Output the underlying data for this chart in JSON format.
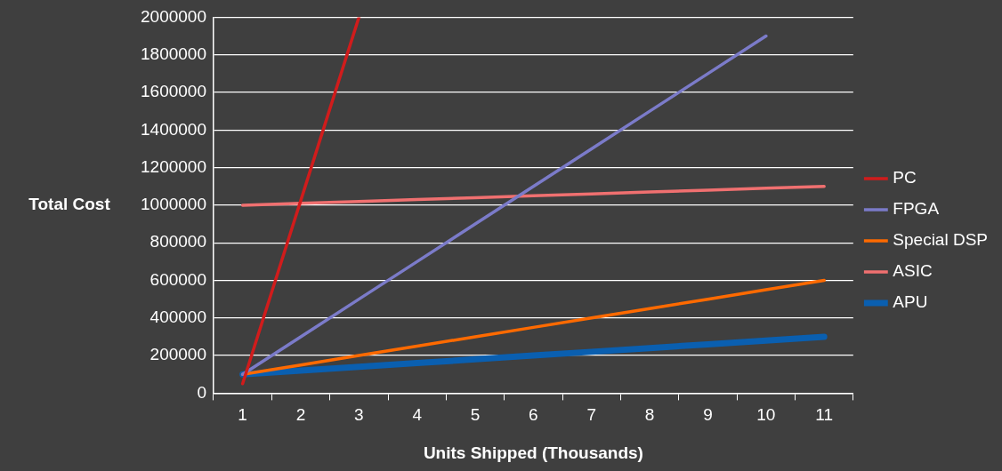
{
  "chart_data": {
    "type": "line",
    "xlabel": "Units Shipped (Thousands)",
    "ylabel": "Total Cost",
    "categories": [
      "1",
      "2",
      "3",
      "4",
      "5",
      "6",
      "7",
      "8",
      "9",
      "10",
      "11"
    ],
    "series": [
      {
        "name": "PC",
        "color": "#d01c1c",
        "values": [
          50000,
          1025000,
          2000000,
          null,
          null,
          null,
          null,
          null,
          null,
          null,
          null
        ]
      },
      {
        "name": "FPGA",
        "color": "#7b7bc9",
        "values": [
          100000,
          300000,
          500000,
          700000,
          900000,
          1100000,
          1300000,
          1500000,
          1700000,
          1900000,
          null
        ]
      },
      {
        "name": "Special DSP",
        "color": "#ff6a00",
        "values": [
          100000,
          150000,
          200000,
          250000,
          300000,
          350000,
          400000,
          450000,
          500000,
          550000,
          600000
        ]
      },
      {
        "name": "ASIC",
        "color": "#f07070",
        "values": [
          1000000,
          1010000,
          1020000,
          1030000,
          1040000,
          1050000,
          1060000,
          1070000,
          1080000,
          1090000,
          1100000
        ]
      },
      {
        "name": "APU",
        "color": "#0a5fb0",
        "values": [
          100000,
          120000,
          140000,
          160000,
          180000,
          200000,
          220000,
          240000,
          260000,
          280000,
          300000
        ]
      }
    ],
    "ylim": [
      0,
      2000000
    ],
    "yticks": [
      0,
      200000,
      400000,
      600000,
      800000,
      1000000,
      1200000,
      1400000,
      1600000,
      1800000,
      2000000
    ],
    "grid": "y",
    "legend": "right",
    "marker": "none"
  }
}
